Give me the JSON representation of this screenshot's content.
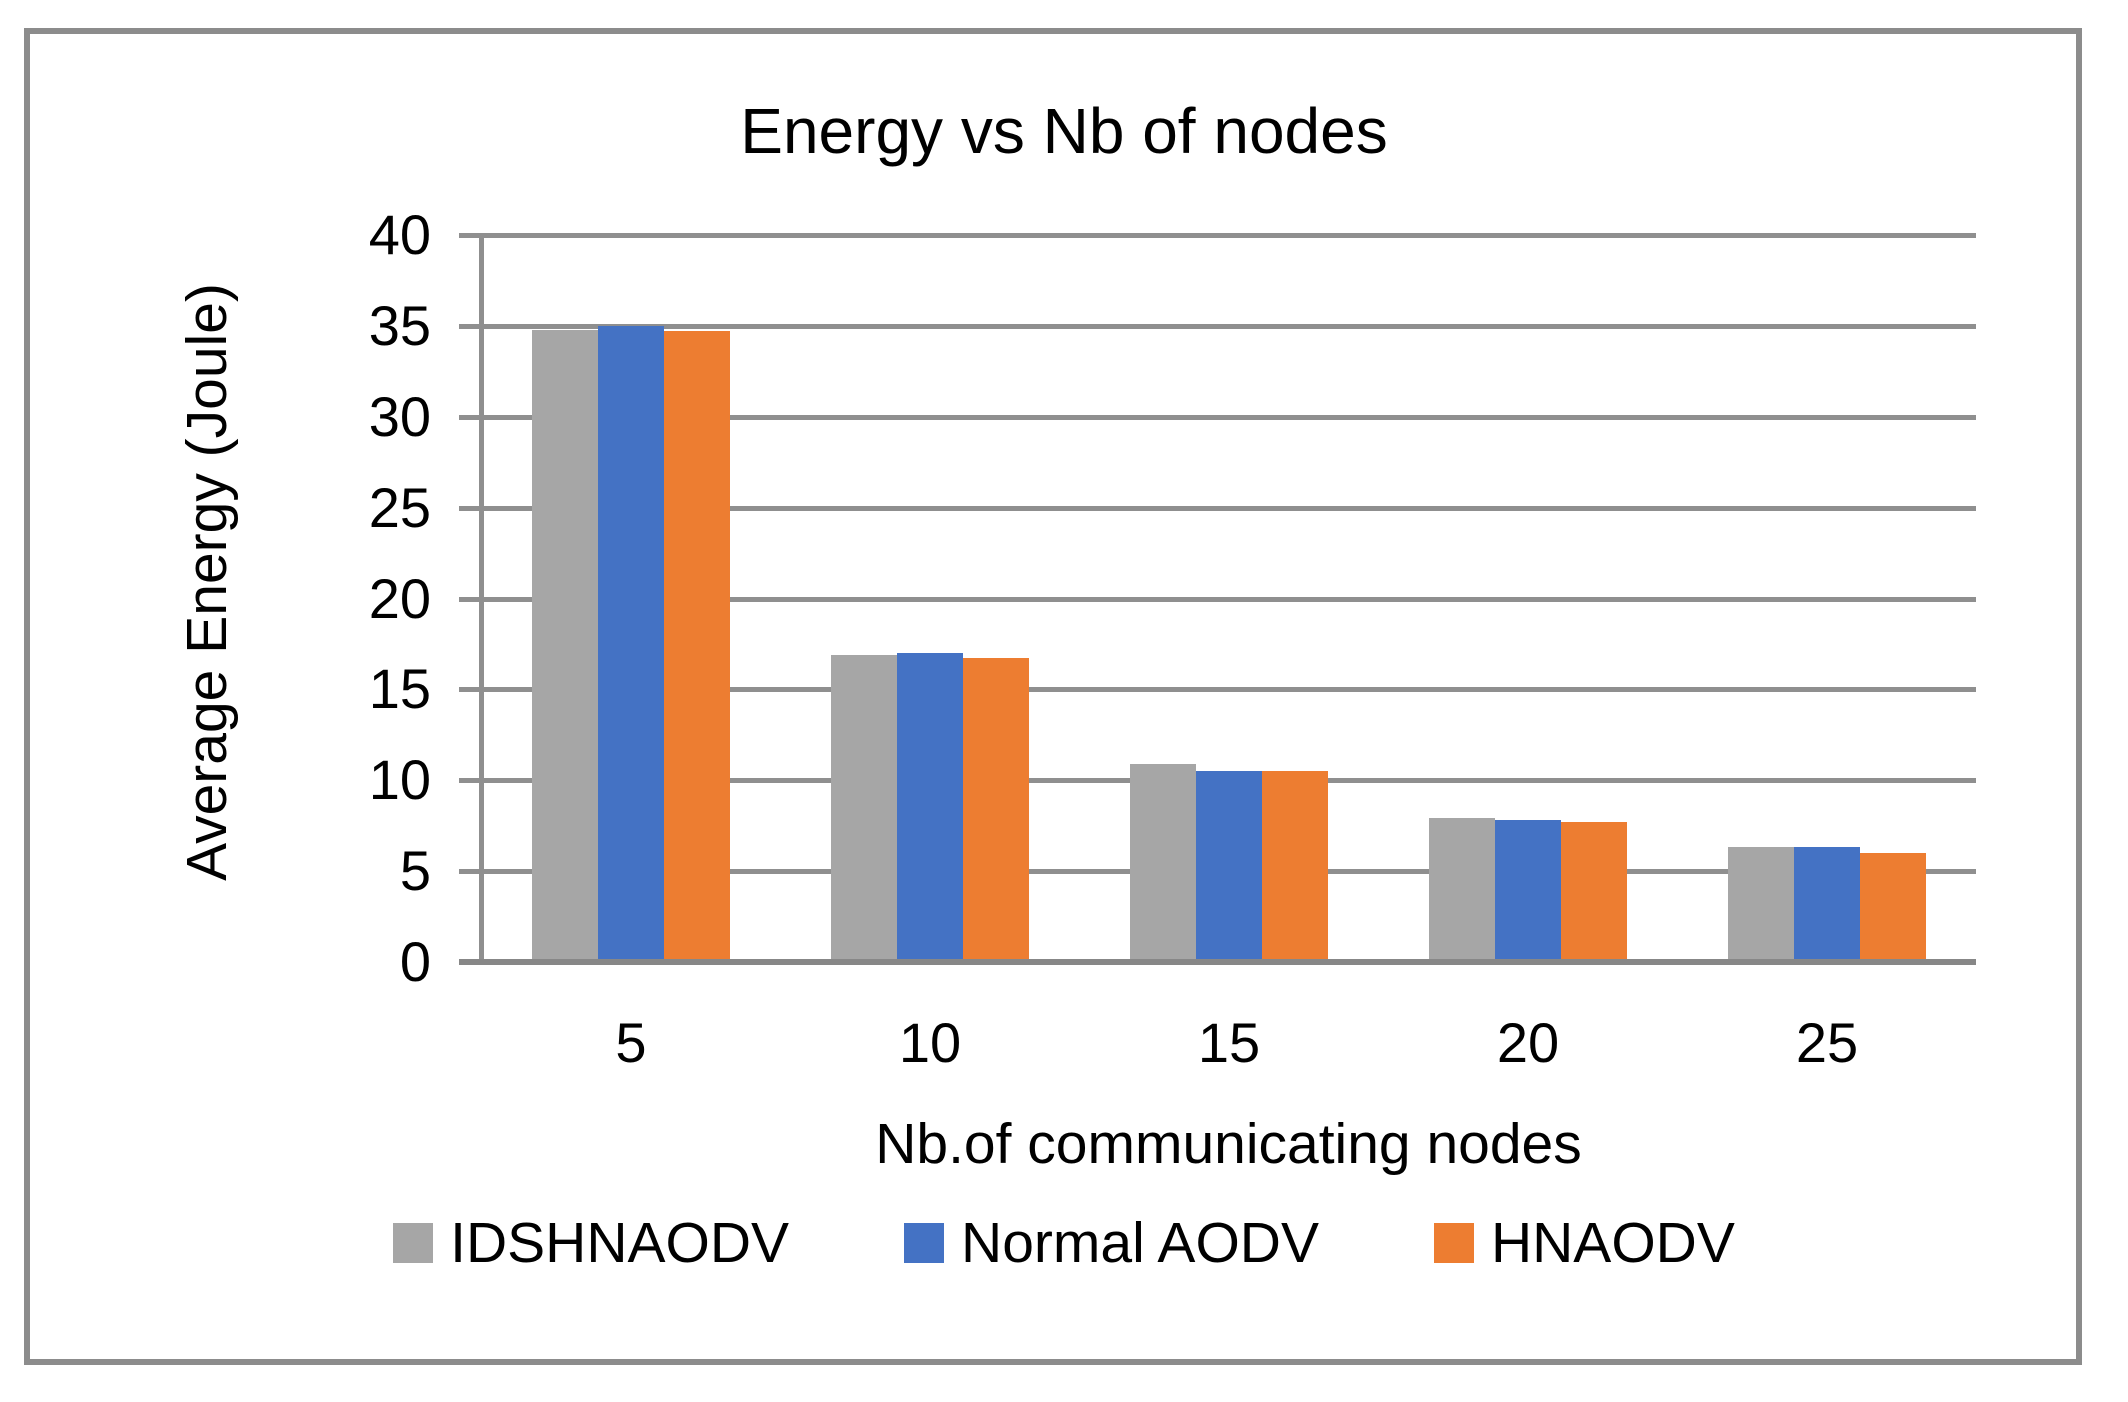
{
  "chart_data": {
    "type": "bar",
    "title": "Energy vs Nb of nodes",
    "xlabel": "Nb.of communicating nodes",
    "ylabel": "Average Energy (Joule)",
    "categories": [
      "5",
      "10",
      "15",
      "20",
      "25"
    ],
    "series": [
      {
        "name": "IDSHNAODV",
        "color": "#A6A6A6",
        "values": [
          34.8,
          16.9,
          10.9,
          7.9,
          6.3
        ]
      },
      {
        "name": "Normal AODV",
        "color": "#4472C4",
        "values": [
          35.0,
          17.0,
          10.5,
          7.8,
          6.3
        ]
      },
      {
        "name": "HNAODV",
        "color": "#ED7D31",
        "values": [
          34.7,
          16.7,
          10.5,
          7.7,
          6.0
        ]
      }
    ],
    "ylim": [
      0,
      40
    ],
    "ytick_step": 5,
    "ytick_labels": [
      "0",
      "5",
      "10",
      "15",
      "20",
      "25",
      "30",
      "35",
      "40"
    ],
    "grid": true,
    "legend_position": "bottom",
    "colors": {
      "gridline": "#8f8f8f",
      "axis": "#878787",
      "frame_border": "#8c8c8c",
      "text": "#000000",
      "background": "#ffffff"
    }
  }
}
